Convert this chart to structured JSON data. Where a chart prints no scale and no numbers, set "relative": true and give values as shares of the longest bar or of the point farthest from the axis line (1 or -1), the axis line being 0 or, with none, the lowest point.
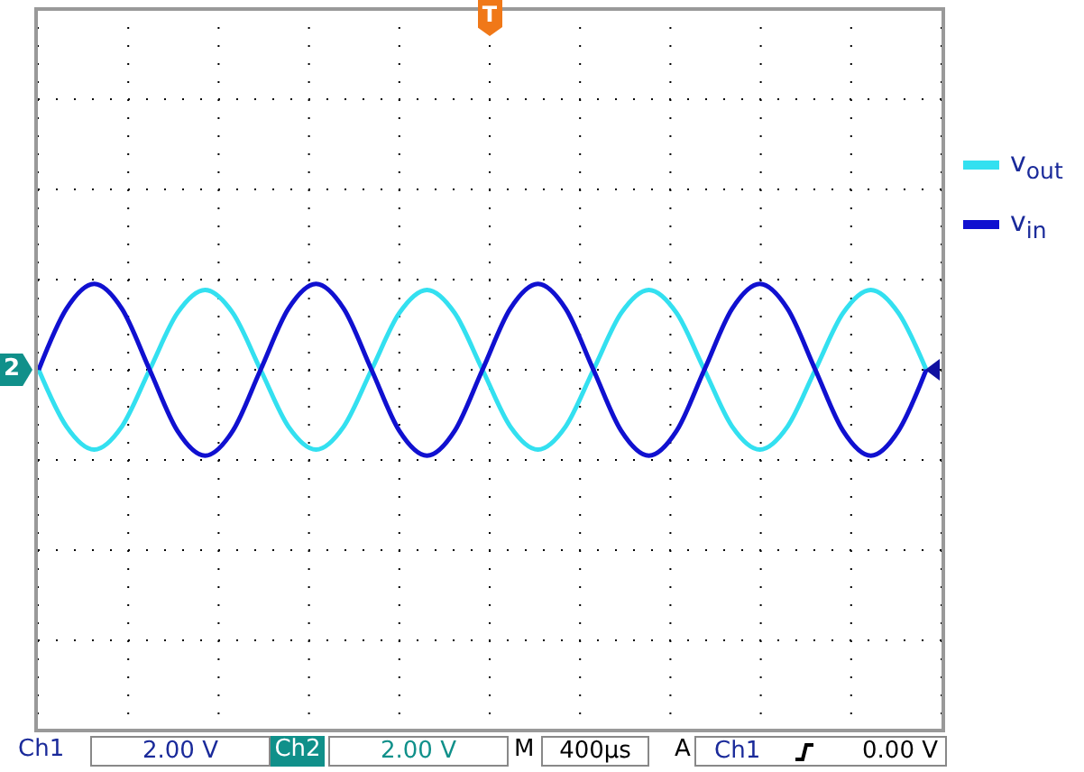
{
  "chart_data": {
    "type": "line",
    "relative": true,
    "grid": true,
    "legend": "right",
    "marker": "none",
    "line_style": "solid",
    "categories": [
      null,
      null,
      null,
      null,
      null,
      null,
      null,
      null,
      null,
      null,
      null,
      null,
      null,
      null,
      null,
      null,
      null,
      null,
      null,
      null,
      null,
      null,
      null,
      null,
      null,
      null,
      null,
      null,
      null,
      null,
      null,
      null,
      null
    ],
    "series": [
      {
        "name": "v$_{out}$",
        "color": "#33e0f0",
        "values": [
          0,
          -0.66,
          -0.93,
          -0.66,
          0,
          0.66,
          0.93,
          0.66,
          0,
          -0.66,
          -0.93,
          -0.66,
          0,
          0.66,
          0.93,
          0.66,
          0,
          -0.66,
          -0.93,
          -0.66,
          0,
          0.66,
          0.93,
          0.66,
          0,
          -0.66,
          -0.93,
          -0.66,
          0,
          0.66,
          0.93,
          0.66,
          0
        ]
      },
      {
        "name": "v$_{in}$",
        "color": "#1010d0",
        "values": [
          0,
          0.71,
          1,
          0.71,
          0,
          -0.71,
          -1,
          -0.71,
          0,
          0.71,
          1,
          0.71,
          0,
          -0.71,
          -1,
          -0.71,
          0,
          0.71,
          1,
          0.71,
          0,
          -0.71,
          -1,
          -0.71,
          0,
          0.71,
          1,
          0.71,
          0,
          -0.71,
          -1,
          -0.71,
          0
        ]
      }
    ],
    "annotations": [
      "T",
      "2",
      "Ch1",
      "2.00 V",
      "Ch2",
      "2.00 V",
      "M",
      "400µs",
      "A",
      "Ch1",
      "0.00 V"
    ]
  }
}
